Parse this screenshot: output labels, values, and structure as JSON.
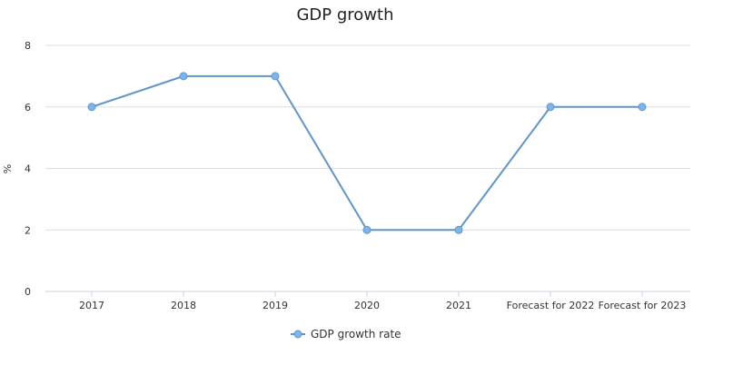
{
  "chart_data": {
    "type": "line",
    "title": "GDP growth",
    "xlabel": "",
    "ylabel": "%",
    "categories": [
      "2017",
      "2018",
      "2019",
      "2020",
      "2021",
      "Forecast for 2022",
      "Forecast for 2023"
    ],
    "series": [
      {
        "name": "GDP growth rate",
        "values": [
          6,
          7,
          7,
          2,
          2,
          6,
          6
        ],
        "color": "#5f96ca",
        "marker_color": "#7cb5ec"
      }
    ],
    "ylim": [
      0,
      8
    ],
    "yticks": [
      0,
      2,
      4,
      6,
      8
    ],
    "grid": true,
    "legend_position": "bottom-center"
  }
}
